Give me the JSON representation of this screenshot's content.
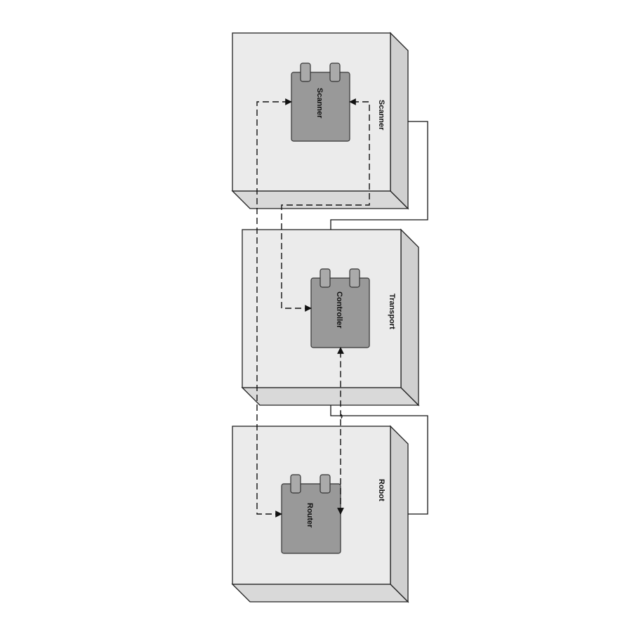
{
  "nodes": [
    {
      "id": "scanner-node",
      "label": "Scanner"
    },
    {
      "id": "transport-node",
      "label": "Transport"
    },
    {
      "id": "robot-node",
      "label": "Robot"
    }
  ],
  "components": [
    {
      "id": "scanner-component",
      "label": "Scanner"
    },
    {
      "id": "controller-component",
      "label": "Controller"
    },
    {
      "id": "router-component",
      "label": "Router"
    }
  ]
}
